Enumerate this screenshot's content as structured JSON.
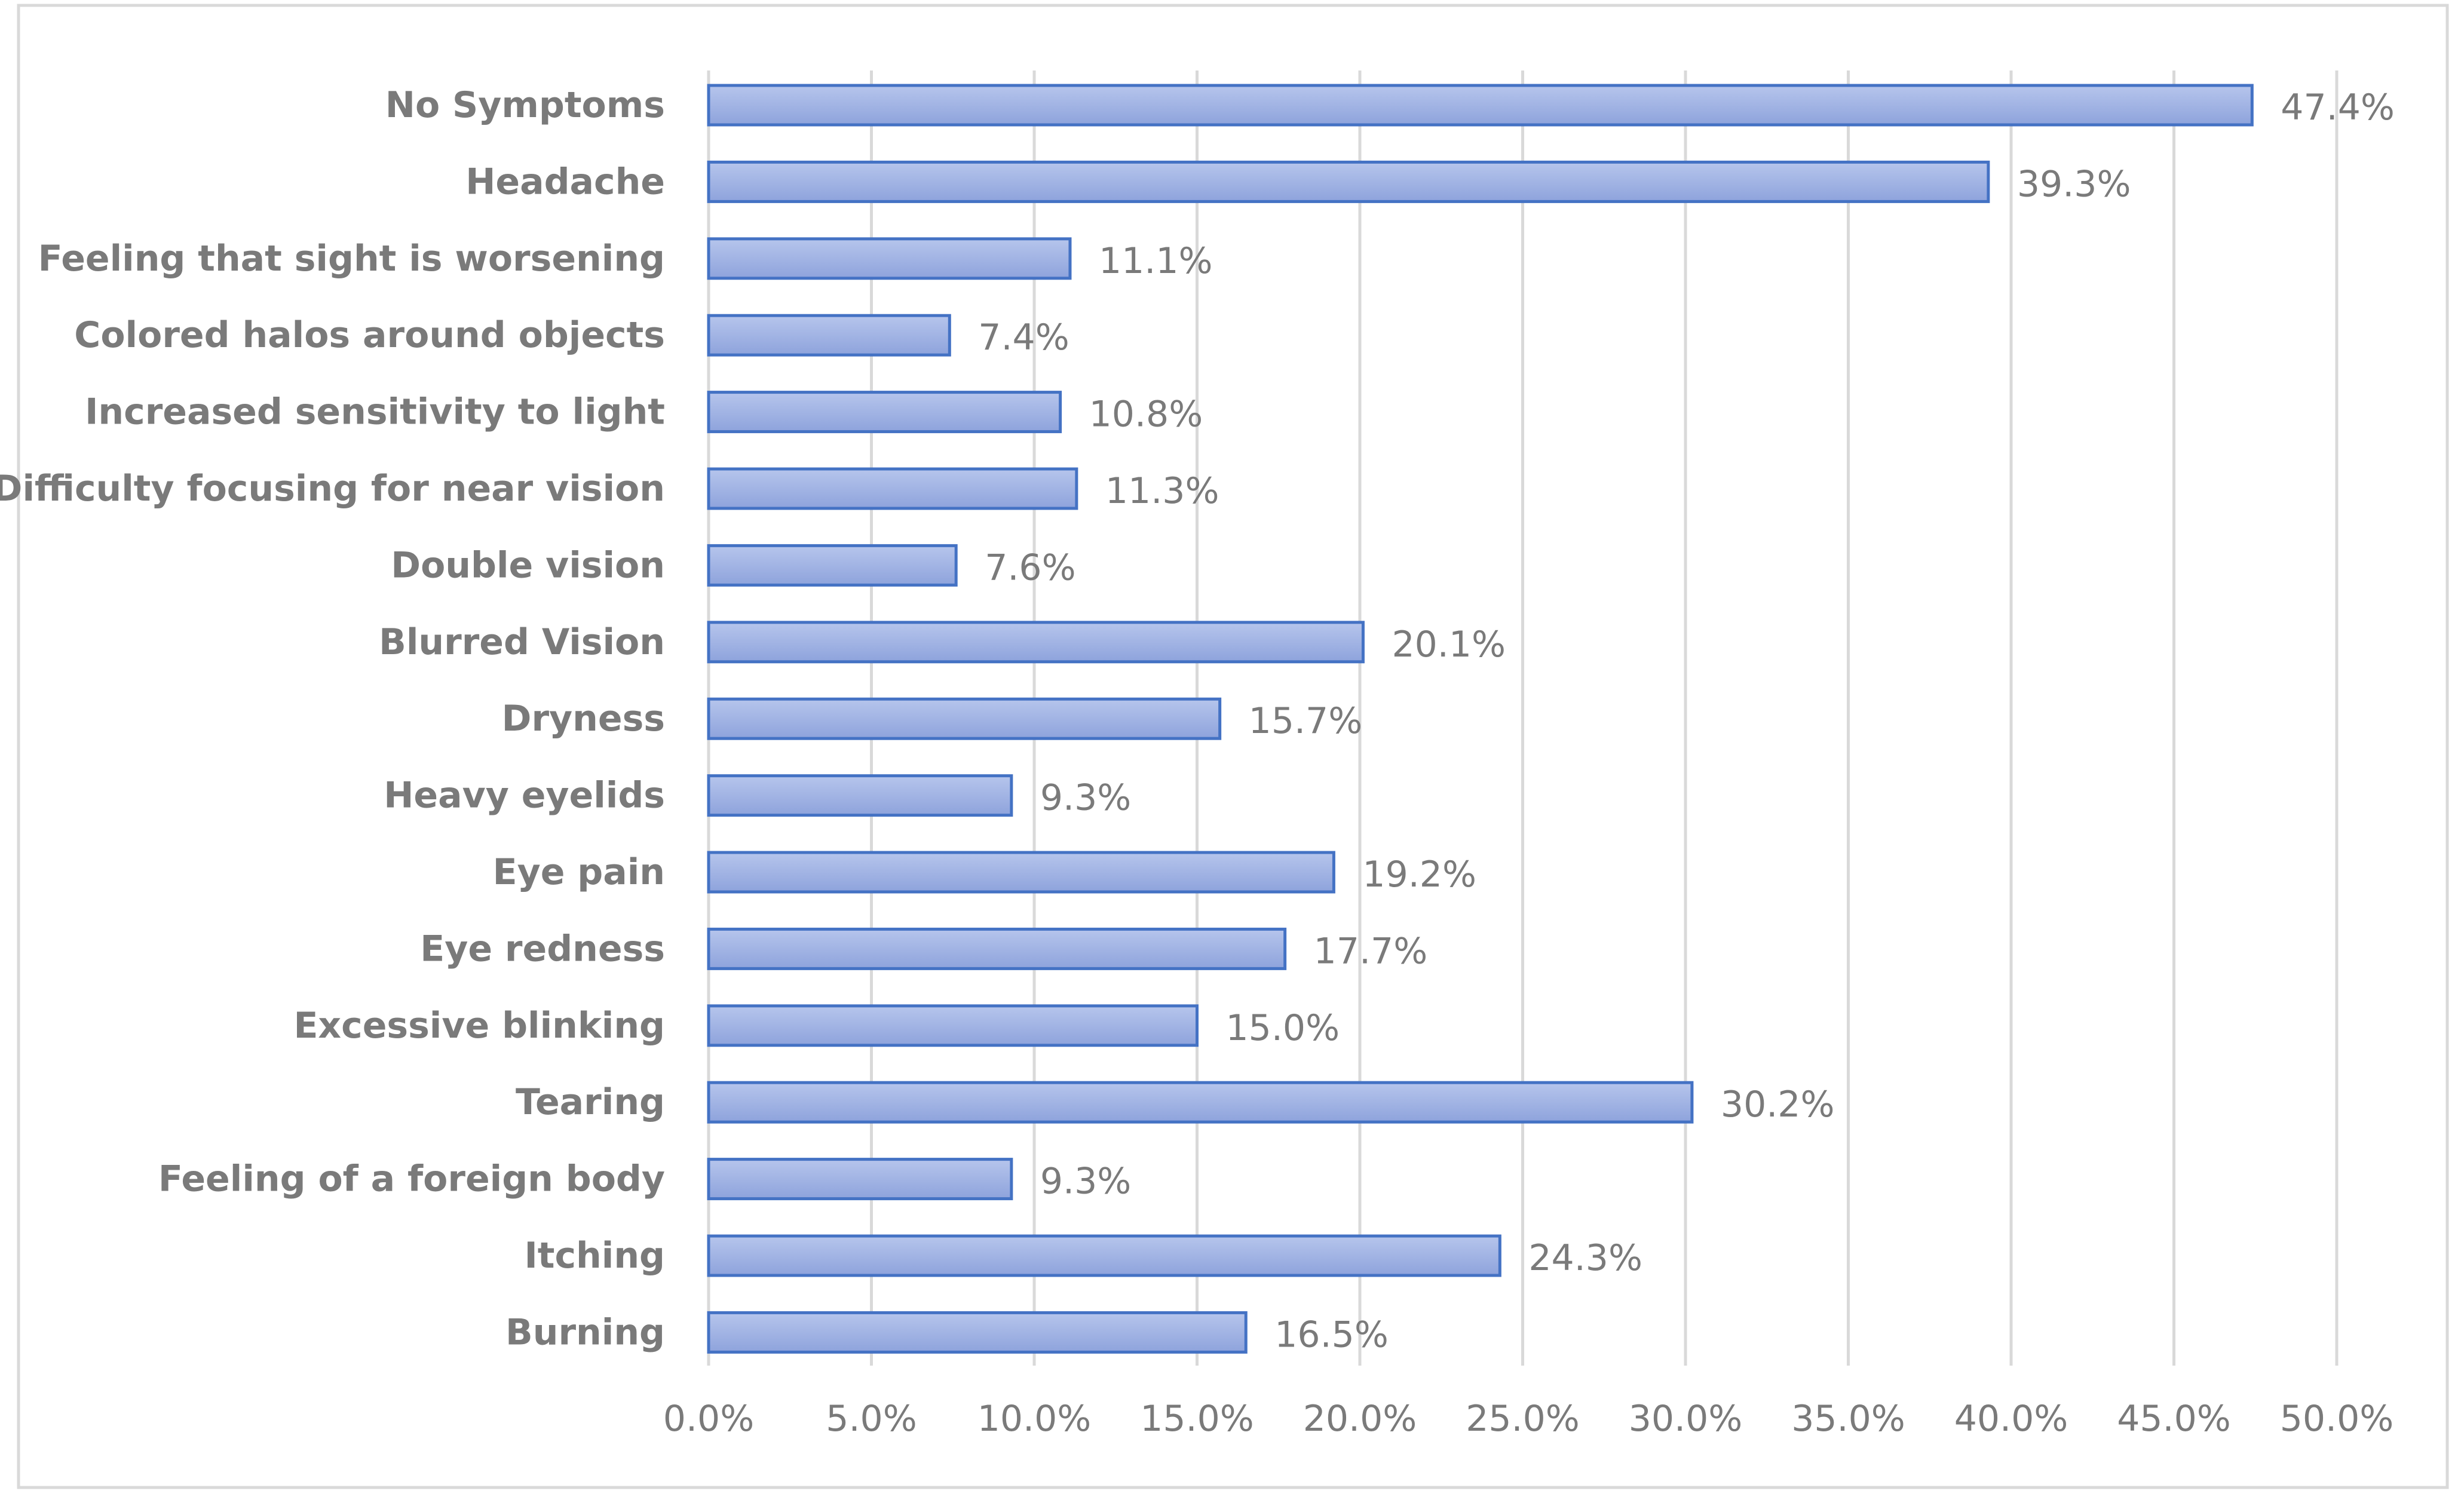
{
  "chart_data": {
    "type": "bar",
    "orientation": "horizontal",
    "title": "",
    "xlabel": "",
    "ylabel": "",
    "categories": [
      "No Symptoms",
      "Headache",
      "Feeling that sight is worsening",
      "Colored halos around objects",
      "Increased sensitivity to light",
      "Difficulty focusing for near vision",
      "Double vision",
      "Blurred Vision",
      "Dryness",
      "Heavy eyelids",
      "Eye pain",
      "Eye redness",
      "Excessive blinking",
      "Tearing",
      "Feeling of a foreign body",
      "Itching",
      "Burning"
    ],
    "values": [
      47.4,
      39.3,
      11.1,
      7.4,
      10.8,
      11.3,
      7.6,
      20.1,
      15.7,
      9.3,
      19.2,
      17.7,
      15.0,
      30.2,
      9.3,
      24.3,
      16.5
    ],
    "value_labels": [
      "47.4%",
      "39.3%",
      "11.1%",
      "7.4%",
      "10.8%",
      "11.3%",
      "7.6%",
      "20.1%",
      "15.7%",
      "9.3%",
      "19.2%",
      "17.7%",
      "15.0%",
      "30.2%",
      "9.3%",
      "24.3%",
      "16.5%"
    ],
    "x_ticks": [
      0,
      5,
      10,
      15,
      20,
      25,
      30,
      35,
      40,
      45,
      50
    ],
    "x_tick_labels": [
      "0.0%",
      "5.0%",
      "10.0%",
      "15.0%",
      "20.0%",
      "25.0%",
      "30.0%",
      "35.0%",
      "40.0%",
      "45.0%",
      "50.0%"
    ],
    "xlim": [
      0,
      50
    ],
    "grid": "vertical",
    "legend": "none",
    "colors": {
      "bar_fill_top": "#b6c5ec",
      "bar_fill_bottom": "#8ea3dc",
      "bar_stroke": "#4472c4",
      "grid": "#d9d9d9",
      "text": "#7a7a7a",
      "frame": "#d9d9d9"
    }
  }
}
